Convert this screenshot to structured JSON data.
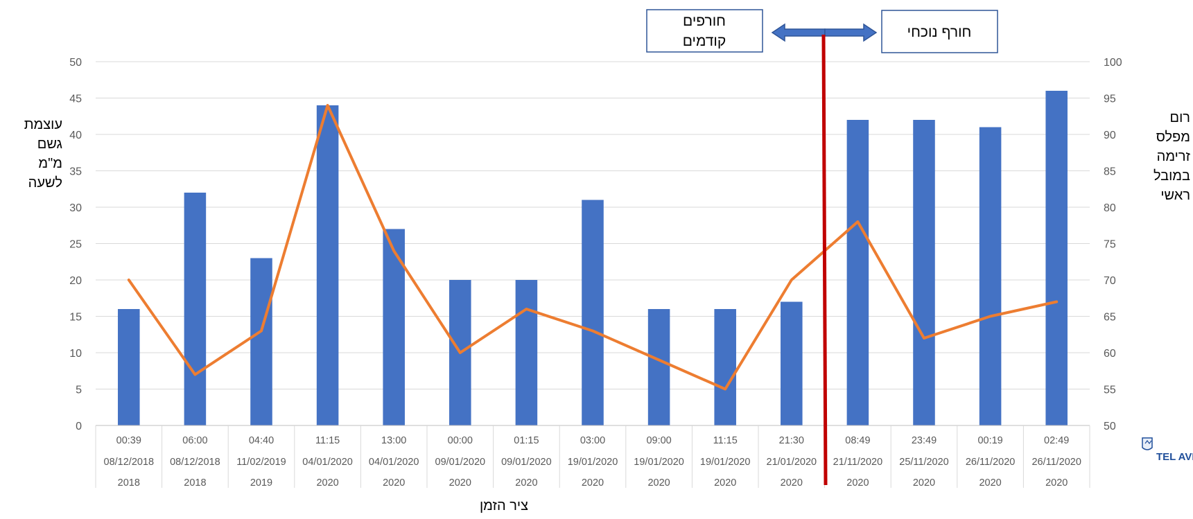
{
  "chart_data": {
    "type": "bar",
    "categories": [
      {
        "time": "00:39",
        "date": "08/12/2018",
        "year": "2018"
      },
      {
        "time": "06:00",
        "date": "08/12/2018",
        "year": "2018"
      },
      {
        "time": "04:40",
        "date": "11/02/2019",
        "year": "2019"
      },
      {
        "time": "11:15",
        "date": "04/01/2020",
        "year": "2020"
      },
      {
        "time": "13:00",
        "date": "04/01/2020",
        "year": "2020"
      },
      {
        "time": "00:00",
        "date": "09/01/2020",
        "year": "2020"
      },
      {
        "time": "01:15",
        "date": "09/01/2020",
        "year": "2020"
      },
      {
        "time": "03:00",
        "date": "19/01/2020",
        "year": "2020"
      },
      {
        "time": "09:00",
        "date": "19/01/2020",
        "year": "2020"
      },
      {
        "time": "11:15",
        "date": "19/01/2020",
        "year": "2020"
      },
      {
        "time": "21:30",
        "date": "21/01/2020",
        "year": "2020"
      },
      {
        "time": "08:49",
        "date": "21/11/2020",
        "year": "2020"
      },
      {
        "time": "23:49",
        "date": "25/11/2020",
        "year": "2020"
      },
      {
        "time": "00:19",
        "date": "26/11/2020",
        "year": "2020"
      },
      {
        "time": "02:49",
        "date": "26/11/2020",
        "year": "2020"
      }
    ],
    "series": [
      {
        "type": "bar",
        "axis": "left",
        "color": "#4472C4",
        "values": [
          16,
          32,
          23,
          44,
          27,
          20,
          20,
          31,
          16,
          16,
          17,
          42,
          42,
          41,
          46
        ]
      },
      {
        "type": "line",
        "axis": "right",
        "color": "#ED7D31",
        "values": [
          70,
          57,
          63,
          94,
          74,
          60,
          66,
          63,
          59,
          55,
          70,
          78,
          62,
          65,
          67
        ]
      }
    ],
    "y_left": {
      "lines": [
        "עוצמת",
        "גשם",
        "מ\"מ",
        "לשעה"
      ],
      "range": [
        0,
        50
      ],
      "step": 5,
      "ticks": [
        "0",
        "5",
        "10",
        "15",
        "20",
        "25",
        "30",
        "35",
        "40",
        "45",
        "50"
      ]
    },
    "y_right": {
      "lines": [
        "רום",
        "מפלס",
        "זרימה",
        "במובל",
        "ראשי"
      ],
      "range": [
        50,
        100
      ],
      "step": 5,
      "ticks": [
        "50",
        "55",
        "60",
        "65",
        "70",
        "75",
        "80",
        "85",
        "90",
        "95",
        "100"
      ]
    },
    "xlabel": "ציר הזמן",
    "grid": true,
    "annotations": {
      "left_box": {
        "lines": [
          "חורפים",
          "קודמים"
        ]
      },
      "right_box": {
        "lines": [
          "חורף נוכחי"
        ]
      },
      "divider_color": "#C00000"
    }
  },
  "logo": {
    "text": "TEL AVIV YAFO"
  }
}
